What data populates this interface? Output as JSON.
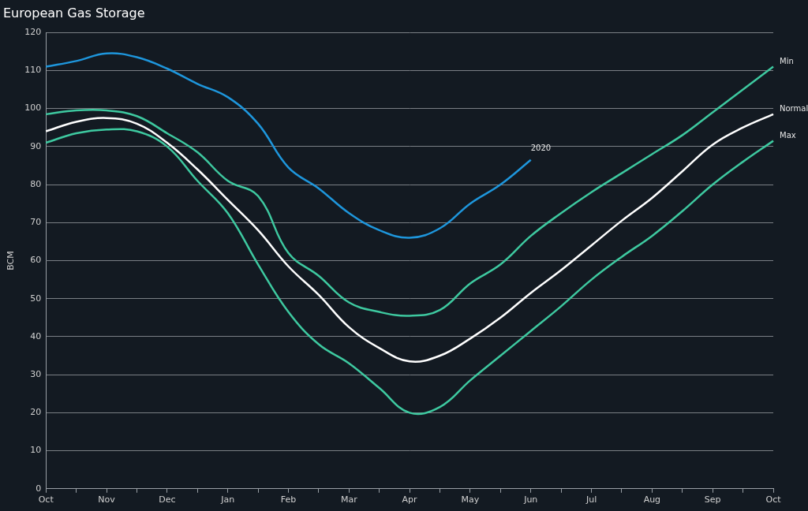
{
  "chart_data": {
    "type": "line",
    "title": "European Gas Storage",
    "y_label": "BCM",
    "categories": [
      "Oct",
      null,
      "Nov",
      null,
      "Dec",
      null,
      "Jan",
      null,
      "Feb",
      null,
      "Mar",
      null,
      "Apr",
      null,
      "May",
      null,
      "Jun",
      null,
      "Jul",
      null,
      "Aug",
      null,
      "Sep",
      null,
      "Oct"
    ],
    "series": [
      {
        "name": "Min",
        "color": "#3ec9a0",
        "values": [
          98.5,
          99.5,
          99.5,
          98,
          93.5,
          88.5,
          81,
          77,
          62,
          56,
          49,
          46.5,
          45.5,
          47,
          54,
          59,
          66.5,
          72.5,
          78,
          83,
          88,
          93,
          99,
          105,
          111
        ]
      },
      {
        "name": "Normal",
        "color": "#ffffff",
        "values": [
          94,
          96.5,
          97.5,
          96,
          91,
          84,
          76,
          68,
          58.5,
          51,
          42.5,
          37,
          33.5,
          35,
          39.5,
          45,
          51.5,
          57.5,
          64,
          70.5,
          76.5,
          83.5,
          90.5,
          95,
          98.5
        ]
      },
      {
        "name": "Max",
        "color": "#3ec9a0",
        "values": [
          91,
          93.5,
          94.5,
          94,
          90,
          81,
          72.5,
          59,
          46.5,
          38,
          33,
          26.5,
          20,
          21.5,
          28.5,
          35,
          41.5,
          48,
          55,
          61,
          66.5,
          73,
          80,
          86,
          91.5
        ]
      },
      {
        "name": "2020",
        "color": "#1e96dc",
        "values": [
          111,
          112.5,
          114.5,
          113.5,
          110.5,
          106.5,
          103,
          96,
          84.5,
          79,
          72.5,
          68,
          66,
          68.5,
          75,
          80,
          86.5,
          null,
          null,
          null,
          null,
          null,
          null,
          null,
          null
        ]
      }
    ],
    "ylim": [
      0,
      120
    ],
    "yticks": [
      0,
      10,
      20,
      30,
      40,
      50,
      60,
      70,
      80,
      90,
      100,
      110,
      120
    ],
    "grid": true
  }
}
